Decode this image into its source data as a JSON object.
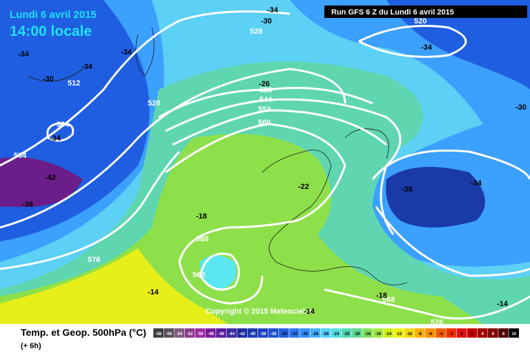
{
  "header": {
    "date": "Lundi 6 avril 2015",
    "time": "14:00 locale",
    "run": "Run GFS 6 Z du Lundi 6 avril 2015"
  },
  "map": {
    "copyright": "Copyright © 2015 Meteociel.fr",
    "geopotential_labels": [
      528,
      520,
      512,
      504,
      504,
      520,
      536,
      544,
      552,
      560,
      568,
      560,
      576,
      568,
      576
    ],
    "temperature_labels": [
      -34,
      -34,
      -34,
      -34,
      -34,
      -34,
      -34,
      -30,
      -30,
      -30,
      -26,
      -42,
      -38,
      -38,
      -22,
      -18,
      -18,
      -14,
      -14,
      -14
    ]
  },
  "footer": {
    "title": "Temp. et Geop. 500hPa (°C)",
    "lead": "(+ 6h)",
    "scale": [
      -58,
      -56,
      -54,
      -52,
      -50,
      -48,
      -46,
      -44,
      -42,
      -40,
      -38,
      -36,
      -34,
      -32,
      -30,
      -28,
      -26,
      -24,
      -22,
      -20,
      -18,
      -16,
      -14,
      -12,
      -10,
      -8,
      -6,
      -4,
      -2,
      0,
      2,
      4,
      6,
      8,
      10
    ]
  }
}
